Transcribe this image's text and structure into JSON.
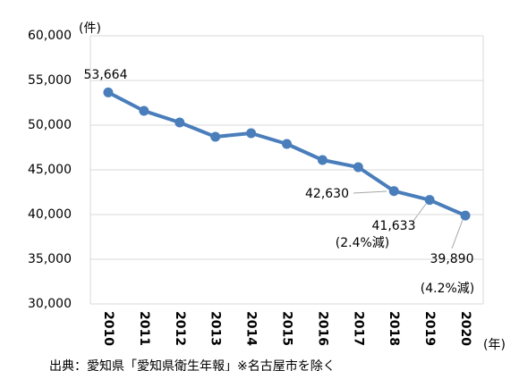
{
  "chart_data": {
    "type": "line",
    "y_unit": "(件)",
    "x_unit": "(年)",
    "source": "出典：愛知県「愛知県衛生年報」※名古屋市を除く",
    "categories": [
      "2010",
      "2011",
      "2012",
      "2013",
      "2014",
      "2015",
      "2016",
      "2017",
      "2018",
      "2019",
      "2020"
    ],
    "values": [
      53664,
      51600,
      50300,
      48700,
      49100,
      47900,
      46100,
      45300,
      42630,
      41633,
      39890
    ],
    "value_labels": [
      "53,664",
      null,
      null,
      null,
      null,
      null,
      null,
      null,
      "42,630",
      "41,633",
      "39,890"
    ],
    "annotations": [
      "(2.4%減)",
      "(4.2%減)"
    ],
    "color": "#4a7ebb",
    "ylim": [
      30000,
      60000
    ],
    "yticks": [
      {
        "value": 30000,
        "label": "30,000"
      },
      {
        "value": 35000,
        "label": "35,000"
      },
      {
        "value": 40000,
        "label": "40,000"
      },
      {
        "value": 45000,
        "label": "45,000"
      },
      {
        "value": 50000,
        "label": "50,000"
      },
      {
        "value": 55000,
        "label": "55,000"
      },
      {
        "value": 60000,
        "label": "60,000"
      }
    ],
    "grid": true
  }
}
